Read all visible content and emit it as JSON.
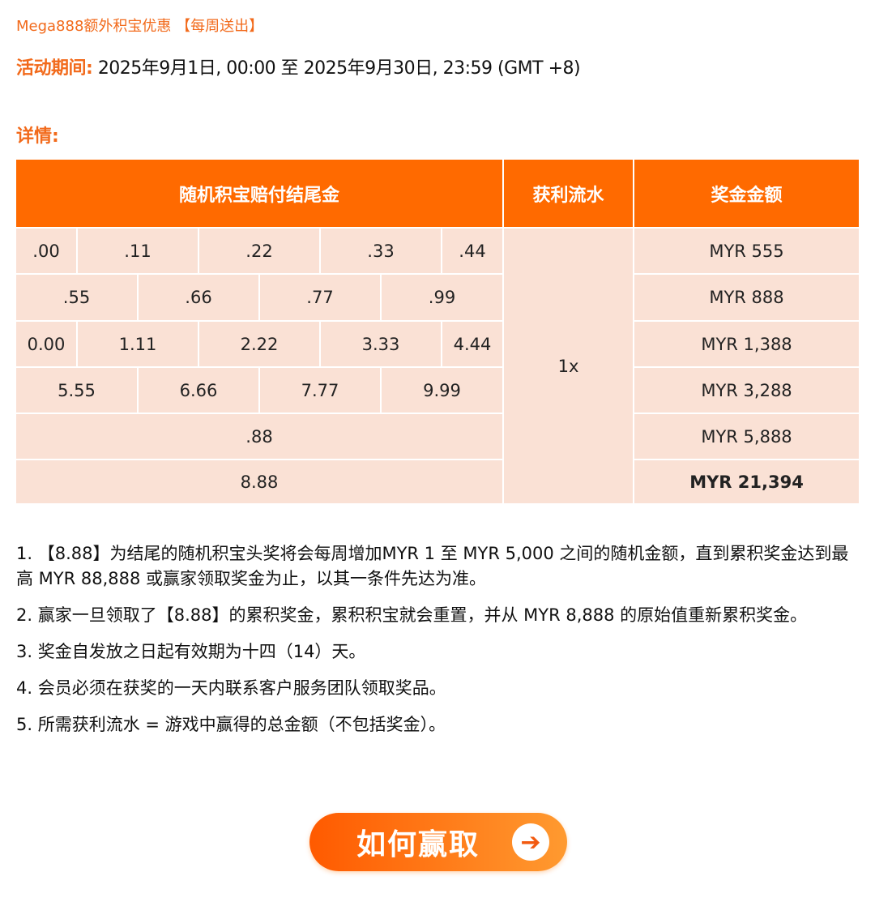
{
  "title": "Mega888额外积宝优惠 【每周送出】",
  "period": {
    "label": "活动期间:",
    "value": "2025年9月1日, 00:00 至 2025年9月30日, 23:59 (GMT +8)"
  },
  "details_label": "详情:",
  "table": {
    "headers": [
      "随机积宝赔付结尾金",
      "获利流水",
      "奖金金额"
    ],
    "rows": [
      {
        "endings": [
          ".00",
          ".11",
          ".22",
          ".33",
          ".44"
        ],
        "prize": "MYR 555"
      },
      {
        "endings": [
          ".55",
          ".66",
          ".77",
          ".99"
        ],
        "prize": "MYR 888"
      },
      {
        "endings": [
          "0.00",
          "1.11",
          "2.22",
          "3.33",
          "4.44"
        ],
        "prize": "MYR 1,388"
      },
      {
        "endings": [
          "5.55",
          "6.66",
          "7.77",
          "9.99"
        ],
        "prize": "MYR 3,288"
      },
      {
        "endings": [
          ".88"
        ],
        "prize": "MYR 5,888"
      },
      {
        "endings": [
          "8.88"
        ],
        "prize": "MYR  21,394"
      }
    ],
    "turnover": "1x"
  },
  "notes": [
    "1. 【8.88】为结尾的随机积宝头奖将会每周增加MYR 1 至 MYR 5,000 之间的随机金额，直到累积奖金达到最高 MYR 88,888 或赢家领取奖金为止，以其一条件先达为准。",
    "2. 赢家一旦领取了【8.88】的累积奖金，累积积宝就会重置，并从 MYR 8,888 的原始值重新累积奖金。",
    "3. 奖金自发放之日起有效期为十四（14）天。",
    "4. 会员必须在获奖的一天内联系客户服务团队领取奖品。",
    "5. 所需获利流水 = 游戏中赢得的总金额（不包括奖金）。"
  ],
  "cta": {
    "label": "如何赢取",
    "icon": "arrow-right-icon"
  },
  "colors": {
    "accent": "#ff6a00",
    "cell": "#fae1d5"
  }
}
